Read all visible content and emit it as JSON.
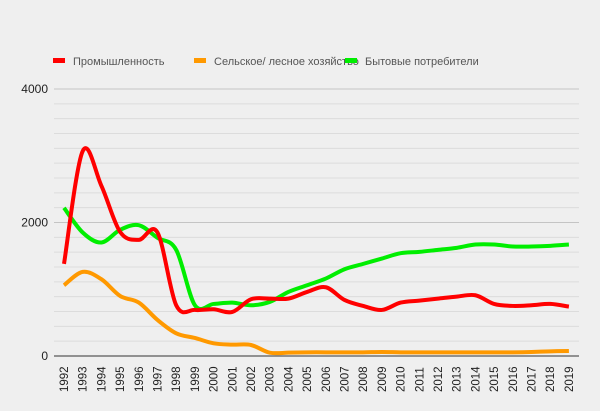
{
  "chart_data": {
    "type": "line",
    "title": "",
    "xlabel": "",
    "ylabel": "",
    "ylim": [
      0,
      4000
    ],
    "yticks": [
      "0",
      "2000",
      "4000"
    ],
    "legend_position": "top",
    "categories": [
      "1992",
      "1993",
      "1994",
      "1995",
      "1996",
      "1997",
      "1998",
      "1999",
      "2000",
      "2001",
      "2002",
      "2003",
      "2004",
      "2005",
      "2006",
      "2007",
      "2008",
      "2009",
      "2010",
      "2011",
      "2012",
      "2013",
      "2014",
      "2015",
      "2016",
      "2017",
      "2018",
      "2019"
    ],
    "series": [
      {
        "name": "Промышленность",
        "color": "#ff0000",
        "values": [
          1380,
          3070,
          2550,
          1860,
          1740,
          1850,
          760,
          690,
          700,
          660,
          850,
          860,
          860,
          960,
          1030,
          840,
          750,
          690,
          800,
          830,
          860,
          890,
          910,
          780,
          750,
          760,
          780,
          740
        ]
      },
      {
        "name": "Сельское/ лесное хозяйство",
        "color": "#ff9900",
        "values": [
          1060,
          1260,
          1150,
          900,
          800,
          540,
          340,
          270,
          190,
          170,
          165,
          50,
          50,
          55,
          55,
          55,
          55,
          60,
          55,
          55,
          55,
          55,
          55,
          55,
          55,
          60,
          70,
          75
        ]
      },
      {
        "name": "Бытовые потребители",
        "color": "#00ee00",
        "values": [
          2220,
          1850,
          1700,
          1890,
          1960,
          1770,
          1590,
          760,
          780,
          800,
          760,
          810,
          960,
          1060,
          1160,
          1300,
          1380,
          1460,
          1540,
          1560,
          1590,
          1620,
          1670,
          1670,
          1640,
          1640,
          1650,
          1670
        ]
      }
    ]
  }
}
